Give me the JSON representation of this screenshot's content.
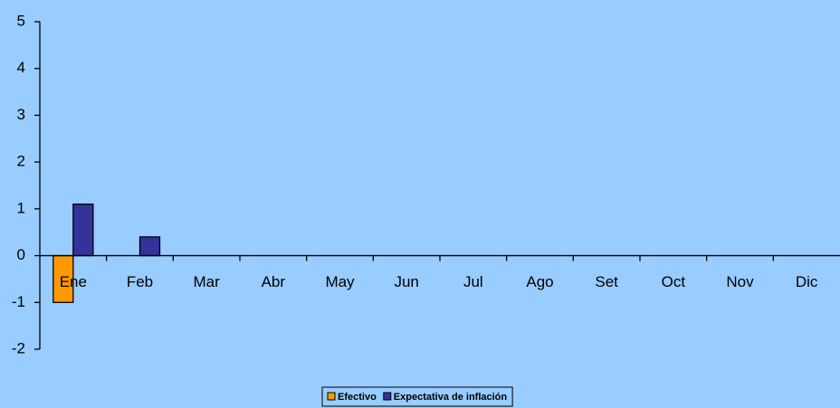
{
  "chart_data": {
    "type": "bar",
    "categories": [
      "Ene",
      "Feb",
      "Mar",
      "Abr",
      "May",
      "Jun",
      "Jul",
      "Ago",
      "Set",
      "Oct",
      "Nov",
      "Dic"
    ],
    "series": [
      {
        "name": "Efectivo",
        "color": "#ff9900",
        "values": [
          -1,
          null,
          null,
          null,
          null,
          null,
          null,
          null,
          null,
          null,
          null,
          null
        ]
      },
      {
        "name": "Expectativa de inflación",
        "color": "#333399",
        "values": [
          1.1,
          0.4,
          null,
          null,
          null,
          null,
          null,
          null,
          null,
          null,
          null,
          null
        ]
      }
    ],
    "ylim": [
      -2,
      5
    ],
    "yticks": [
      -2,
      -1,
      0,
      1,
      2,
      3,
      4,
      5
    ],
    "grid": false,
    "legend": "bottom"
  }
}
